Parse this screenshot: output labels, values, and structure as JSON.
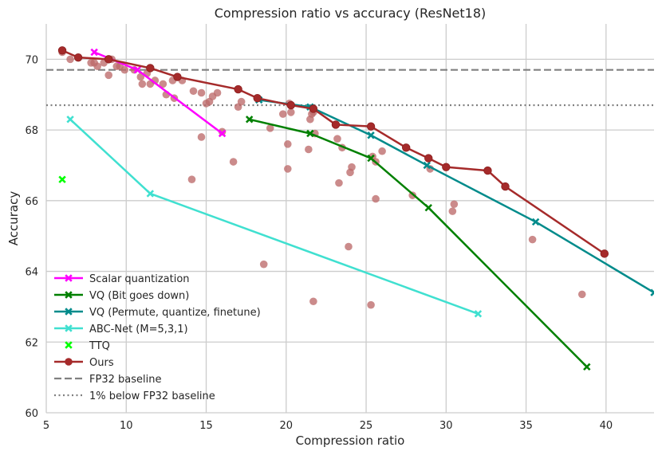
{
  "chart_data": {
    "type": "line",
    "title": "Compression ratio vs accuracy (ResNet18)",
    "xlabel": "Compression ratio",
    "ylabel": "Accuracy",
    "xlim": [
      5,
      43
    ],
    "ylim": [
      60,
      71
    ],
    "xticks": [
      5,
      10,
      15,
      20,
      25,
      30,
      35,
      40
    ],
    "yticks": [
      60,
      62,
      64,
      66,
      68,
      70
    ],
    "grid": true,
    "legend_position": "lower-left",
    "series": [
      {
        "name": "Scalar quantization",
        "kind": "line",
        "marker": "x",
        "color": "#ff00ff",
        "x": [
          8.0,
          10.7,
          16.0
        ],
        "y": [
          70.2,
          69.7,
          67.9
        ]
      },
      {
        "name": "VQ (Bit goes down)",
        "kind": "line",
        "marker": "x",
        "color": "#008000",
        "x": [
          17.7,
          21.5,
          25.3,
          28.9,
          38.8
        ],
        "y": [
          68.3,
          67.9,
          67.2,
          65.8,
          61.3
        ]
      },
      {
        "name": "VQ (Permute, quantize, finetune)",
        "kind": "line",
        "marker": "x",
        "color": "#008b8b",
        "x": [
          18.3,
          21.5,
          25.3,
          28.8,
          35.6,
          43.0
        ],
        "y": [
          68.85,
          68.65,
          67.85,
          67.0,
          65.4,
          63.4
        ]
      },
      {
        "name": "ABC-Net (M=5,3,1)",
        "kind": "line",
        "marker": "x",
        "color": "#40e0d0",
        "x": [
          6.5,
          11.5,
          32.0
        ],
        "y": [
          68.3,
          66.2,
          62.8
        ]
      },
      {
        "name": "TTQ",
        "kind": "marker",
        "marker": "x",
        "color": "#00ff00",
        "x": [
          6.0
        ],
        "y": [
          66.6
        ]
      },
      {
        "name": "Ours",
        "kind": "line",
        "marker": "o",
        "color": "#a52a2a",
        "x": [
          6.0,
          7.0,
          8.9,
          11.5,
          13.2,
          17.0,
          18.2,
          20.3,
          21.7,
          23.1,
          25.3,
          27.5,
          28.9,
          30.0,
          32.6,
          33.7,
          39.9
        ],
        "y": [
          70.25,
          70.05,
          70.0,
          69.75,
          69.5,
          69.15,
          68.9,
          68.7,
          68.6,
          68.15,
          68.1,
          67.5,
          67.2,
          66.95,
          66.85,
          66.4,
          64.5
        ]
      },
      {
        "name": "FP32 baseline",
        "kind": "hline",
        "style": "dashed",
        "color": "#808080",
        "y": 69.7
      },
      {
        "name": "1% below FP32 baseline",
        "kind": "hline",
        "style": "dotted",
        "color": "#808080",
        "y": 68.7
      }
    ],
    "scatter_cloud": {
      "color": "#bc6a6a",
      "x": [
        6.0,
        6.5,
        7.8,
        8.0,
        8.2,
        8.6,
        8.9,
        9.1,
        9.4,
        9.6,
        9.9,
        10.5,
        10.9,
        11.0,
        11.3,
        11.5,
        11.8,
        12.3,
        12.5,
        12.9,
        13.0,
        13.5,
        14.2,
        14.7,
        15.0,
        15.2,
        15.4,
        15.7,
        16.0,
        14.7,
        16.7,
        17.0,
        17.2,
        19.0,
        19.8,
        20.1,
        20.1,
        20.3,
        20.2,
        21.4,
        21.5,
        21.6,
        21.7,
        21.8,
        23.2,
        23.3,
        23.5,
        24.0,
        24.1,
        25.4,
        25.6,
        25.6,
        26.0,
        27.9,
        29.0,
        30.4,
        30.5,
        23.9,
        14.1,
        18.6,
        21.7,
        25.3,
        35.4,
        38.5
      ],
      "y": [
        70.2,
        70.0,
        69.9,
        69.9,
        69.8,
        69.9,
        69.55,
        70.0,
        69.8,
        69.8,
        69.7,
        69.7,
        69.5,
        69.3,
        69.6,
        69.3,
        69.4,
        69.3,
        69.0,
        69.4,
        68.9,
        69.4,
        69.1,
        69.05,
        68.75,
        68.8,
        68.95,
        69.05,
        67.95,
        67.8,
        67.1,
        68.65,
        68.8,
        68.05,
        68.45,
        67.6,
        66.9,
        68.5,
        68.75,
        67.45,
        68.3,
        68.45,
        68.5,
        67.9,
        67.75,
        66.5,
        67.5,
        66.8,
        66.95,
        67.25,
        67.1,
        66.05,
        67.4,
        66.15,
        66.9,
        65.7,
        65.9,
        64.7,
        66.6,
        64.2,
        63.15,
        63.05,
        64.9,
        63.35
      ]
    }
  }
}
